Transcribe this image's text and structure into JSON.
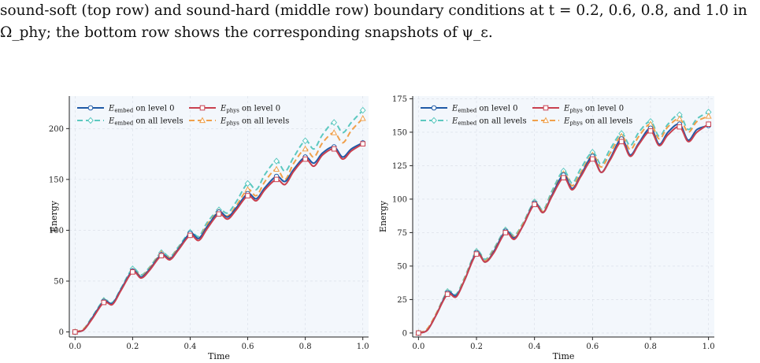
{
  "caption": {
    "line1": "sound-soft (top row) and sound-hard (middle row) boundary conditions at t = 0.2, 0.6, 0.8, and 1.0 in",
    "line2": "Ω_phy; the bottom row shows the corresponding snapshots of ψ_ε."
  },
  "colors": {
    "embed_level0": "#1f5aa6",
    "embed_all": "#5cc8c0",
    "phys_level0": "#c9404f",
    "phys_all": "#f0a04b",
    "plot_bg": "#f3f7fc",
    "grid": "#d8dde6"
  },
  "chart_data": [
    {
      "type": "line",
      "xlabel": "Time",
      "ylabel": "Energy",
      "xlim": [
        -0.02,
        1.02
      ],
      "ylim": [
        -5,
        232
      ],
      "xticks": [
        0.0,
        0.2,
        0.4,
        0.6,
        0.8,
        1.0
      ],
      "xtick_labels": [
        "0.0",
        "0.2",
        "0.4",
        "0.6",
        "0.8",
        "1.0"
      ],
      "yticks": [
        0,
        50,
        100,
        150,
        200
      ],
      "ytick_labels": [
        "0",
        "50",
        "100",
        "150",
        "200"
      ],
      "grid": true,
      "legend": "top-left",
      "series": [
        {
          "key": "embed_level0",
          "name_main": "E",
          "name_sub": "embed",
          "name_rest": " on level 0",
          "style": "solid",
          "marker": "circle",
          "x": [
            0.0,
            0.03,
            0.06,
            0.1,
            0.13,
            0.16,
            0.2,
            0.23,
            0.26,
            0.3,
            0.33,
            0.36,
            0.4,
            0.43,
            0.46,
            0.5,
            0.53,
            0.56,
            0.6,
            0.63,
            0.66,
            0.7,
            0.73,
            0.76,
            0.8,
            0.83,
            0.86,
            0.9,
            0.93,
            0.96,
            1.0
          ],
          "y": [
            0,
            2,
            14,
            30,
            28,
            42,
            60,
            54,
            62,
            76,
            72,
            82,
            97,
            92,
            104,
            118,
            113,
            122,
            136,
            131,
            142,
            153,
            148,
            160,
            172,
            166,
            176,
            182,
            172,
            180,
            186
          ]
        },
        {
          "key": "embed_all",
          "name_main": "E",
          "name_sub": "embed",
          "name_rest": " on all levels",
          "style": "dashed",
          "marker": "diamond",
          "x": [
            0.0,
            0.03,
            0.06,
            0.1,
            0.13,
            0.16,
            0.2,
            0.23,
            0.26,
            0.3,
            0.33,
            0.36,
            0.4,
            0.43,
            0.46,
            0.5,
            0.53,
            0.56,
            0.6,
            0.63,
            0.66,
            0.7,
            0.73,
            0.76,
            0.8,
            0.83,
            0.86,
            0.9,
            0.93,
            0.96,
            1.0
          ],
          "y": [
            0,
            3,
            15,
            31,
            29,
            43,
            62,
            56,
            64,
            78,
            74,
            84,
            98,
            94,
            108,
            120,
            117,
            128,
            146,
            140,
            155,
            168,
            158,
            172,
            188,
            180,
            194,
            206,
            196,
            206,
            218
          ]
        },
        {
          "key": "phys_level0",
          "name_main": "E",
          "name_sub": "phys",
          "name_rest": " on level 0",
          "style": "solid",
          "marker": "square",
          "x": [
            0.0,
            0.03,
            0.06,
            0.1,
            0.13,
            0.16,
            0.2,
            0.23,
            0.26,
            0.3,
            0.33,
            0.36,
            0.4,
            0.43,
            0.46,
            0.5,
            0.53,
            0.56,
            0.6,
            0.63,
            0.66,
            0.7,
            0.73,
            0.76,
            0.8,
            0.83,
            0.86,
            0.9,
            0.93,
            0.96,
            1.0
          ],
          "y": [
            0,
            2,
            13,
            29,
            27,
            41,
            59,
            53,
            61,
            75,
            71,
            81,
            95,
            90,
            102,
            116,
            111,
            120,
            134,
            129,
            140,
            150,
            145,
            158,
            170,
            163,
            174,
            180,
            170,
            178,
            185
          ]
        },
        {
          "key": "phys_all",
          "name_main": "E",
          "name_sub": "phys",
          "name_rest": " on all levels",
          "style": "dashed",
          "marker": "triangle",
          "x": [
            0.0,
            0.03,
            0.06,
            0.1,
            0.13,
            0.16,
            0.2,
            0.23,
            0.26,
            0.3,
            0.33,
            0.36,
            0.4,
            0.43,
            0.46,
            0.5,
            0.53,
            0.56,
            0.6,
            0.63,
            0.66,
            0.7,
            0.73,
            0.76,
            0.8,
            0.83,
            0.86,
            0.9,
            0.93,
            0.96,
            1.0
          ],
          "y": [
            0,
            3,
            14,
            30,
            28,
            42,
            60,
            55,
            63,
            77,
            73,
            83,
            96,
            92,
            106,
            118,
            114,
            124,
            140,
            134,
            148,
            160,
            150,
            166,
            180,
            172,
            186,
            196,
            186,
            198,
            210
          ]
        }
      ]
    },
    {
      "type": "line",
      "xlabel": "Time",
      "ylabel": "Energy",
      "xlim": [
        -0.02,
        1.02
      ],
      "ylim": [
        -3,
        177
      ],
      "xticks": [
        0.0,
        0.2,
        0.4,
        0.6,
        0.8,
        1.0
      ],
      "xtick_labels": [
        "0.0",
        "0.2",
        "0.4",
        "0.6",
        "0.8",
        "1.0"
      ],
      "yticks": [
        0,
        25,
        50,
        75,
        100,
        125,
        150,
        175
      ],
      "ytick_labels": [
        "0",
        "25",
        "50",
        "75",
        "100",
        "125",
        "150",
        "175"
      ],
      "grid": true,
      "legend": "top-left",
      "series": [
        {
          "key": "embed_level0",
          "name_main": "E",
          "name_sub": "embed",
          "name_rest": " on level 0",
          "style": "solid",
          "marker": "circle",
          "x": [
            0.0,
            0.03,
            0.06,
            0.1,
            0.13,
            0.16,
            0.2,
            0.23,
            0.26,
            0.3,
            0.33,
            0.36,
            0.4,
            0.43,
            0.46,
            0.5,
            0.53,
            0.56,
            0.6,
            0.63,
            0.66,
            0.7,
            0.73,
            0.76,
            0.8,
            0.83,
            0.86,
            0.9,
            0.93,
            0.96,
            1.0
          ],
          "y": [
            0,
            2,
            13,
            30,
            28,
            40,
            60,
            53,
            61,
            76,
            71,
            80,
            97,
            90,
            103,
            118,
            108,
            118,
            132,
            120,
            130,
            145,
            133,
            142,
            153,
            141,
            150,
            156,
            144,
            152,
            155
          ]
        },
        {
          "key": "embed_all",
          "name_main": "E",
          "name_sub": "embed",
          "name_rest": " on all levels",
          "style": "dashed",
          "marker": "diamond",
          "x": [
            0.0,
            0.03,
            0.06,
            0.1,
            0.13,
            0.16,
            0.2,
            0.23,
            0.26,
            0.3,
            0.33,
            0.36,
            0.4,
            0.43,
            0.46,
            0.5,
            0.53,
            0.56,
            0.6,
            0.63,
            0.66,
            0.7,
            0.73,
            0.76,
            0.8,
            0.83,
            0.86,
            0.9,
            0.93,
            0.96,
            1.0
          ],
          "y": [
            0,
            3,
            14,
            31,
            29,
            42,
            61,
            55,
            63,
            77,
            73,
            82,
            98,
            92,
            106,
            121,
            112,
            123,
            135,
            126,
            137,
            149,
            140,
            150,
            158,
            147,
            156,
            163,
            152,
            160,
            165
          ]
        },
        {
          "key": "phys_level0",
          "name_main": "E",
          "name_sub": "phys",
          "name_rest": " on level 0",
          "style": "solid",
          "marker": "square",
          "x": [
            0.0,
            0.03,
            0.06,
            0.1,
            0.13,
            0.16,
            0.2,
            0.23,
            0.26,
            0.3,
            0.33,
            0.36,
            0.4,
            0.43,
            0.46,
            0.5,
            0.53,
            0.56,
            0.6,
            0.63,
            0.66,
            0.7,
            0.73,
            0.76,
            0.8,
            0.83,
            0.86,
            0.9,
            0.93,
            0.96,
            1.0
          ],
          "y": [
            0,
            2,
            13,
            29,
            27,
            40,
            59,
            53,
            60,
            75,
            70,
            80,
            96,
            90,
            102,
            116,
            107,
            117,
            130,
            120,
            129,
            143,
            132,
            141,
            151,
            140,
            148,
            154,
            143,
            150,
            156
          ]
        },
        {
          "key": "phys_all",
          "name_main": "E",
          "name_sub": "phys",
          "name_rest": " on all levels",
          "style": "dashed",
          "marker": "triangle",
          "x": [
            0.0,
            0.03,
            0.06,
            0.1,
            0.13,
            0.16,
            0.2,
            0.23,
            0.26,
            0.3,
            0.33,
            0.36,
            0.4,
            0.43,
            0.46,
            0.5,
            0.53,
            0.56,
            0.6,
            0.63,
            0.66,
            0.7,
            0.73,
            0.76,
            0.8,
            0.83,
            0.86,
            0.9,
            0.93,
            0.96,
            1.0
          ],
          "y": [
            0,
            3,
            14,
            30,
            28,
            41,
            60,
            54,
            62,
            76,
            72,
            81,
            97,
            91,
            104,
            119,
            110,
            120,
            133,
            124,
            134,
            147,
            137,
            147,
            156,
            145,
            154,
            160,
            150,
            158,
            162
          ]
        }
      ]
    }
  ]
}
